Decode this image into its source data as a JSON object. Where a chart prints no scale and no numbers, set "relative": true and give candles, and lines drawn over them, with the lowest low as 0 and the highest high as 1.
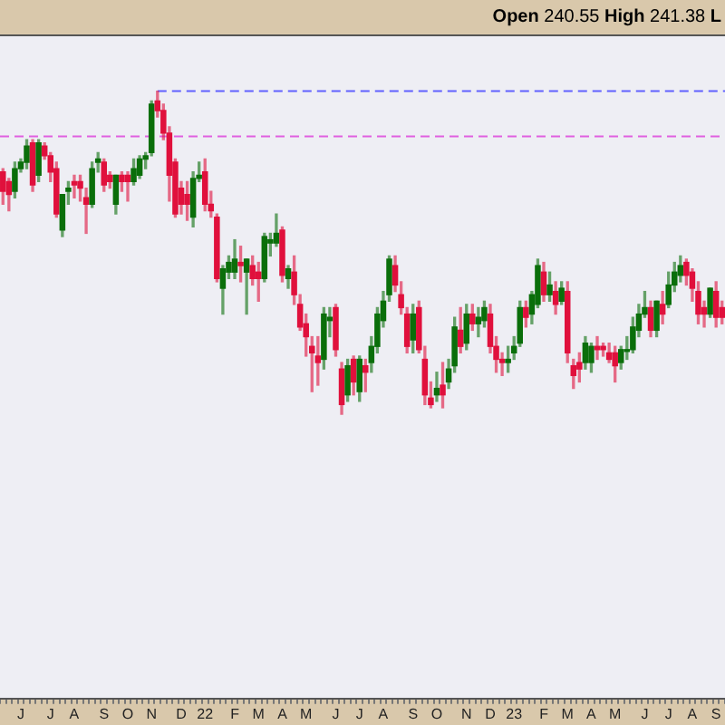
{
  "chart_data": {
    "type": "candlestick",
    "relative": true,
    "tick_labels": "x",
    "grid": false,
    "legend": false,
    "annotations": [
      "Open 240.55 High 241.38 L"
    ],
    "ref_lines": [
      {
        "axis": "y",
        "value": 1,
        "color": "#6060ff",
        "line_style": "dashed"
      },
      {
        "axis": "y",
        "value": 0.86,
        "color": "#e060e0",
        "line_style": "dashed"
      }
    ],
    "categories": [
      null,
      null,
      null,
      "J",
      null,
      null,
      null,
      null,
      "J",
      null,
      null,
      null,
      "A",
      null,
      null,
      null,
      null,
      "S",
      null,
      null,
      null,
      "O",
      null,
      null,
      null,
      "N",
      null,
      null,
      null,
      null,
      "D",
      null,
      null,
      null,
      "22",
      null,
      null,
      null,
      null,
      "F",
      null,
      null,
      null,
      "M",
      null,
      null,
      null,
      "A",
      null,
      null,
      null,
      "M",
      null,
      null,
      null,
      null,
      "J",
      null,
      null,
      null,
      "J",
      null,
      null,
      null,
      "A",
      null,
      null,
      null,
      null,
      "S",
      null,
      null,
      null,
      "O",
      null,
      null,
      null,
      null,
      "N",
      null,
      null,
      null,
      "D",
      null,
      null,
      null,
      "23",
      null,
      null,
      null,
      null,
      "F",
      null,
      null,
      null,
      "M",
      null,
      null,
      null,
      "A",
      null,
      null,
      null,
      "M",
      null,
      null,
      null,
      null,
      "J",
      null,
      null,
      null,
      "J",
      null,
      null,
      null,
      "A",
      null,
      null,
      null,
      "S",
      null
    ],
    "ohlc": [
      [
        0.75,
        0.76,
        0.65,
        0.69
      ],
      [
        0.72,
        0.73,
        0.63,
        0.68
      ],
      [
        0.69,
        0.78,
        0.67,
        0.76
      ],
      [
        0.76,
        0.79,
        0.75,
        0.78
      ],
      [
        0.78,
        0.85,
        0.76,
        0.83
      ],
      [
        0.84,
        0.85,
        0.69,
        0.71
      ],
      [
        0.74,
        0.85,
        0.72,
        0.84
      ],
      [
        0.83,
        0.84,
        0.79,
        0.8
      ],
      [
        0.8,
        0.81,
        0.72,
        0.75
      ],
      [
        0.76,
        0.78,
        0.61,
        0.62
      ],
      [
        0.57,
        0.68,
        0.55,
        0.68
      ],
      [
        0.69,
        0.72,
        0.65,
        0.7
      ],
      [
        0.72,
        0.74,
        0.67,
        0.71
      ],
      [
        0.72,
        0.74,
        0.66,
        0.7
      ],
      [
        0.67,
        0.7,
        0.56,
        0.65
      ],
      [
        0.65,
        0.78,
        0.64,
        0.76
      ],
      [
        0.78,
        0.81,
        0.75,
        0.79
      ],
      [
        0.78,
        0.79,
        0.69,
        0.71
      ],
      [
        0.74,
        0.75,
        0.7,
        0.72
      ],
      [
        0.65,
        0.74,
        0.62,
        0.74
      ],
      [
        0.74,
        0.75,
        0.69,
        0.72
      ],
      [
        0.74,
        0.75,
        0.66,
        0.72
      ],
      [
        0.72,
        0.79,
        0.71,
        0.76
      ],
      [
        0.74,
        0.8,
        0.73,
        0.79
      ],
      [
        0.79,
        0.81,
        0.76,
        0.8
      ],
      [
        0.81,
        0.97,
        0.8,
        0.96
      ],
      [
        0.97,
        1,
        0.92,
        0.94
      ],
      [
        0.94,
        0.96,
        0.85,
        0.87
      ],
      [
        0.87,
        0.89,
        0.66,
        0.74
      ],
      [
        0.78,
        0.79,
        0.61,
        0.62
      ],
      [
        0.7,
        0.72,
        0.62,
        0.65
      ],
      [
        0.68,
        0.72,
        0.6,
        0.65
      ],
      [
        0.61,
        0.75,
        0.58,
        0.73
      ],
      [
        0.73,
        0.78,
        0.72,
        0.74
      ],
      [
        0.75,
        0.79,
        0.63,
        0.65
      ],
      [
        0.65,
        0.69,
        0.61,
        0.63
      ],
      [
        0.61,
        0.62,
        0.41,
        0.42
      ],
      [
        0.39,
        0.46,
        0.31,
        0.45
      ],
      [
        0.44,
        0.49,
        0.42,
        0.47
      ],
      [
        0.44,
        0.54,
        0.42,
        0.48
      ],
      [
        0.47,
        0.52,
        0.41,
        0.46
      ],
      [
        0.44,
        0.48,
        0.31,
        0.48
      ],
      [
        0.46,
        0.49,
        0.4,
        0.42
      ],
      [
        0.44,
        0.47,
        0.35,
        0.42
      ],
      [
        0.42,
        0.56,
        0.41,
        0.55
      ],
      [
        0.53,
        0.56,
        0.49,
        0.54
      ],
      [
        0.53,
        0.62,
        0.52,
        0.56
      ],
      [
        0.57,
        0.58,
        0.41,
        0.43
      ],
      [
        0.42,
        0.46,
        0.39,
        0.45
      ],
      [
        0.44,
        0.49,
        0.34,
        0.37
      ],
      [
        0.34,
        0.37,
        0.26,
        0.27
      ],
      [
        0.28,
        0.31,
        0.18,
        0.24
      ],
      [
        0.21,
        0.24,
        0.07,
        0.19
      ],
      [
        0.18,
        0.24,
        0.09,
        0.16
      ],
      [
        0.17,
        0.33,
        0.14,
        0.31
      ],
      [
        0.29,
        0.33,
        0.24,
        0.3
      ],
      [
        0.33,
        0.34,
        0.18,
        0.2
      ],
      [
        0.14,
        0.16,
        0,
        0.03
      ],
      [
        0.06,
        0.17,
        0.04,
        0.15
      ],
      [
        0.17,
        0.18,
        0.06,
        0.1
      ],
      [
        0.07,
        0.18,
        0.04,
        0.17
      ],
      [
        0.15,
        0.17,
        0.07,
        0.13
      ],
      [
        0.16,
        0.24,
        0.13,
        0.21
      ],
      [
        0.21,
        0.33,
        0.19,
        0.31
      ],
      [
        0.29,
        0.38,
        0.27,
        0.35
      ],
      [
        0.37,
        0.49,
        0.35,
        0.48
      ],
      [
        0.46,
        0.49,
        0.38,
        0.4
      ],
      [
        0.37,
        0.41,
        0.31,
        0.33
      ],
      [
        0.31,
        0.33,
        0.19,
        0.21
      ],
      [
        0.23,
        0.34,
        0.19,
        0.31
      ],
      [
        0.33,
        0.35,
        0.19,
        0.2
      ],
      [
        0.17,
        0.21,
        0.03,
        0.06
      ],
      [
        0.05,
        0.1,
        0.02,
        0.03
      ],
      [
        0.06,
        0.13,
        0.04,
        0.08
      ],
      [
        0.09,
        0.16,
        0.02,
        0.06
      ],
      [
        0.1,
        0.17,
        0.08,
        0.14
      ],
      [
        0.15,
        0.3,
        0.13,
        0.27
      ],
      [
        0.26,
        0.33,
        0.19,
        0.21
      ],
      [
        0.22,
        0.34,
        0.2,
        0.31
      ],
      [
        0.31,
        0.34,
        0.26,
        0.28
      ],
      [
        0.28,
        0.33,
        0.24,
        0.3
      ],
      [
        0.29,
        0.35,
        0.27,
        0.33
      ],
      [
        0.31,
        0.34,
        0.19,
        0.21
      ],
      [
        0.21,
        0.24,
        0.13,
        0.17
      ],
      [
        0.17,
        0.19,
        0.12,
        0.16
      ],
      [
        0.16,
        0.21,
        0.13,
        0.17
      ],
      [
        0.19,
        0.24,
        0.17,
        0.21
      ],
      [
        0.22,
        0.35,
        0.21,
        0.33
      ],
      [
        0.33,
        0.35,
        0.27,
        0.3
      ],
      [
        0.31,
        0.38,
        0.28,
        0.37
      ],
      [
        0.34,
        0.48,
        0.33,
        0.46
      ],
      [
        0.44,
        0.47,
        0.35,
        0.37
      ],
      [
        0.37,
        0.44,
        0.35,
        0.4
      ],
      [
        0.38,
        0.41,
        0.31,
        0.34
      ],
      [
        0.35,
        0.41,
        0.34,
        0.39
      ],
      [
        0.38,
        0.41,
        0.16,
        0.19
      ],
      [
        0.15,
        0.17,
        0.08,
        0.12
      ],
      [
        0.16,
        0.19,
        0.1,
        0.14
      ],
      [
        0.16,
        0.24,
        0.14,
        0.22
      ],
      [
        0.16,
        0.22,
        0.13,
        0.21
      ],
      [
        0.21,
        0.24,
        0.17,
        0.2
      ],
      [
        0.21,
        0.22,
        0.18,
        0.2
      ],
      [
        0.19,
        0.22,
        0.16,
        0.17
      ],
      [
        0.19,
        0.21,
        0.1,
        0.15
      ],
      [
        0.16,
        0.21,
        0.14,
        0.2
      ],
      [
        0.2,
        0.24,
        0.17,
        0.2
      ],
      [
        0.2,
        0.3,
        0.19,
        0.27
      ],
      [
        0.26,
        0.34,
        0.24,
        0.31
      ],
      [
        0.31,
        0.38,
        0.3,
        0.33
      ],
      [
        0.33,
        0.35,
        0.24,
        0.26
      ],
      [
        0.26,
        0.35,
        0.24,
        0.35
      ],
      [
        0.34,
        0.38,
        0.28,
        0.31
      ],
      [
        0.34,
        0.44,
        0.33,
        0.4
      ],
      [
        0.4,
        0.47,
        0.38,
        0.44
      ],
      [
        0.43,
        0.49,
        0.41,
        0.46
      ],
      [
        0.47,
        0.48,
        0.4,
        0.43
      ],
      [
        0.44,
        0.45,
        0.35,
        0.39
      ],
      [
        0.38,
        0.41,
        0.28,
        0.31
      ],
      [
        0.33,
        0.35,
        0.27,
        0.31
      ],
      [
        0.31,
        0.39,
        0.3,
        0.39
      ],
      [
        0.38,
        0.41,
        0.27,
        0.3
      ],
      [
        0.33,
        0.35,
        0.28,
        0.3
      ]
    ]
  }
}
